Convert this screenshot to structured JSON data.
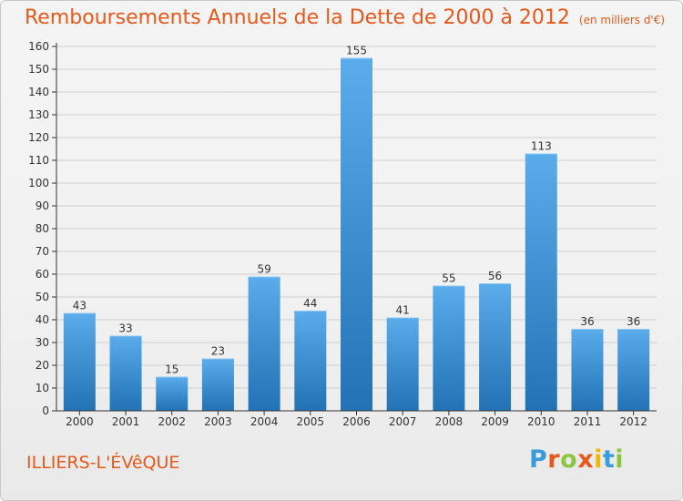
{
  "title": "Remboursements Annuels de la Dette de 2000 à 2012",
  "subtitle": "(en milliers d'€)",
  "commune": "ILLIERS-L'ÉVêQUE",
  "logo": {
    "letters": [
      "P",
      "r",
      "o",
      "x",
      "i",
      "t",
      "i"
    ],
    "colors": [
      "#3a9bd9",
      "#e8581a",
      "#8cc63f",
      "#e8581a",
      "#f2b705",
      "#3a9bd9",
      "#8cc63f"
    ]
  },
  "colors": {
    "accent": "#e8581a",
    "bar_top": "#5aaceb",
    "bar_bottom": "#2272b5",
    "axis": "#333333",
    "grid": "#cfcfcf"
  },
  "chart_data": {
    "type": "bar",
    "categories": [
      "2000",
      "2001",
      "2002",
      "2003",
      "2004",
      "2005",
      "2006",
      "2007",
      "2008",
      "2009",
      "2010",
      "2011",
      "2012"
    ],
    "values": [
      43,
      33,
      15,
      23,
      59,
      44,
      155,
      41,
      55,
      56,
      113,
      36,
      36
    ],
    "ylim": [
      0,
      160
    ],
    "ytick_step": 10,
    "grid": true
  }
}
